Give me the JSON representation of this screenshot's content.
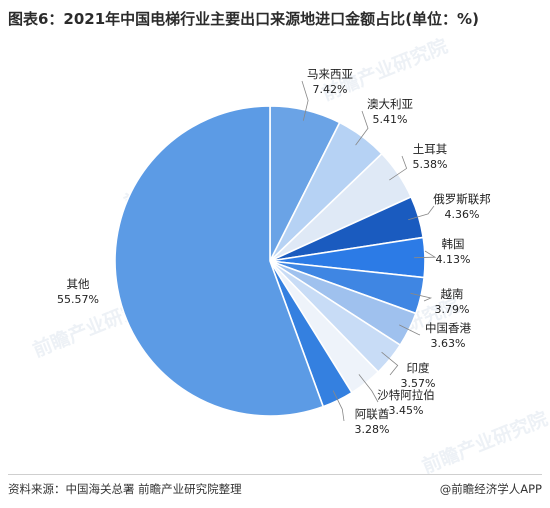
{
  "title": "图表6：2021年中国电梯行业主要出口来源地进口金额占比(单位：%)",
  "footer": {
    "source": "资料来源：中国海关总署 前瞻产业研究院整理",
    "brand": "@前瞻经济学人APP"
  },
  "watermark": "前瞻产业研究院",
  "chart_data": {
    "type": "pie",
    "unit": "%",
    "start_angle_deg": 0,
    "direction": "clockwise",
    "slices": [
      {
        "label": "马来西亚",
        "value": 7.42,
        "display": "7.42%",
        "color": "#6aa3e6"
      },
      {
        "label": "澳大利亚",
        "value": 5.41,
        "display": "5.41%",
        "color": "#b6d2f4"
      },
      {
        "label": "土耳其",
        "value": 5.38,
        "display": "5.38%",
        "color": "#dfe9f6"
      },
      {
        "label": "俄罗斯联邦",
        "value": 4.36,
        "display": "4.36%",
        "color": "#1a5bbf"
      },
      {
        "label": "韩国",
        "value": 4.13,
        "display": "4.13%",
        "color": "#2c7be6"
      },
      {
        "label": "越南",
        "value": 3.79,
        "display": "3.79%",
        "color": "#3f86e3"
      },
      {
        "label": "中国香港",
        "value": 3.63,
        "display": "3.63%",
        "color": "#9fc1ee"
      },
      {
        "label": "印度",
        "value": 3.57,
        "display": "3.57%",
        "color": "#c8dcf6"
      },
      {
        "label": "沙特阿拉伯",
        "value": 3.45,
        "display": "3.45%",
        "color": "#eef3fa"
      },
      {
        "label": "阿联酋",
        "value": 3.28,
        "display": "3.28%",
        "color": "#3480e0"
      },
      {
        "label": "其他",
        "value": 55.57,
        "display": "55.57%",
        "color": "#5c9be5"
      }
    ]
  }
}
